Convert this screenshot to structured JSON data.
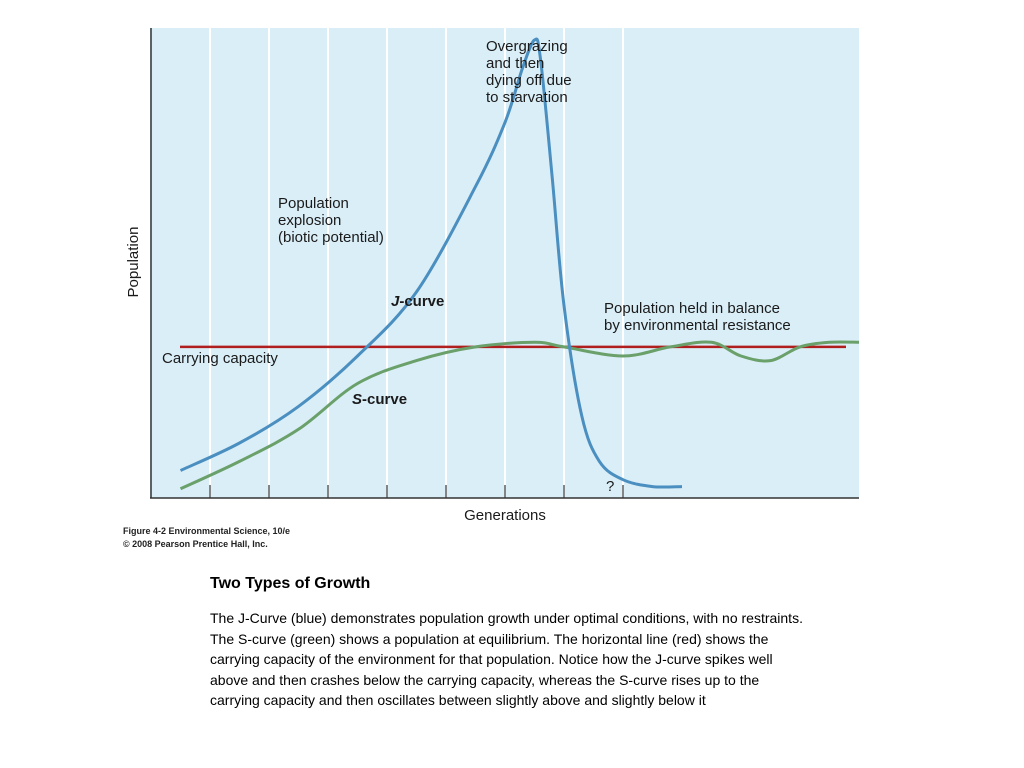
{
  "chart_data": {
    "type": "line",
    "xlabel": "Generations",
    "ylabel": "Population",
    "xlim": [
      0,
      12
    ],
    "ylim": [
      0,
      1
    ],
    "grid": true,
    "carrying_capacity": 0.33,
    "series": [
      {
        "name": "J-curve",
        "color": "#4a8fc0",
        "x": [
          0.5,
          1.5,
          2.5,
          3.5,
          4.5,
          5.5,
          6.0,
          6.3,
          6.5,
          6.6,
          6.8,
          7.0,
          7.3,
          7.6,
          8.0,
          8.5,
          9.0
        ],
        "y": [
          0.06,
          0.12,
          0.2,
          0.31,
          0.45,
          0.68,
          0.82,
          0.94,
          1.0,
          0.96,
          0.7,
          0.42,
          0.18,
          0.08,
          0.04,
          0.025,
          0.025
        ]
      },
      {
        "name": "S-curve",
        "color": "#6aa06a",
        "x": [
          0.5,
          1.5,
          2.5,
          3.5,
          4.5,
          5.5,
          6.5,
          7.0,
          8.0,
          8.8,
          9.5,
          10.0,
          10.5,
          11.0,
          11.5,
          12.0
        ],
        "y": [
          0.02,
          0.08,
          0.15,
          0.25,
          0.3,
          0.33,
          0.34,
          0.33,
          0.31,
          0.33,
          0.34,
          0.31,
          0.3,
          0.33,
          0.34,
          0.34
        ]
      }
    ],
    "annotations": {
      "overgrazing": [
        "Overgrazing",
        "and then",
        "dying off due",
        "to starvation"
      ],
      "explosion": [
        "Population",
        "explosion",
        "(biotic potential)"
      ],
      "j_curve_prefix": "J",
      "j_curve_suffix": "-curve",
      "s_curve_prefix": "S",
      "s_curve_suffix": "-curve",
      "balance": [
        "Population held in balance",
        "by environmental resistance"
      ],
      "carrying_capacity": "Carrying capacity",
      "question": "?"
    }
  },
  "caption": {
    "line1": "Figure 4-2  Environmental Science, 10/e",
    "line2": "© 2008 Pearson Prentice Hall, Inc."
  },
  "text": {
    "heading": "Two Types of Growth",
    "body": "The J-Curve (blue) demonstrates population growth under optimal conditions, with no restraints. The S-curve (green) shows a population at equilibrium. The horizontal line (red) shows the carrying capacity of the environment for that population. Notice how the J-curve spikes well above and then crashes below the carrying capacity, whereas the S-curve rises up to the carrying capacity and then oscillates between slightly above and slightly below it"
  },
  "colors": {
    "plot_background": "#daeef8",
    "carrying_capacity_line": "#b01e1e",
    "grid": "#ffffff"
  }
}
